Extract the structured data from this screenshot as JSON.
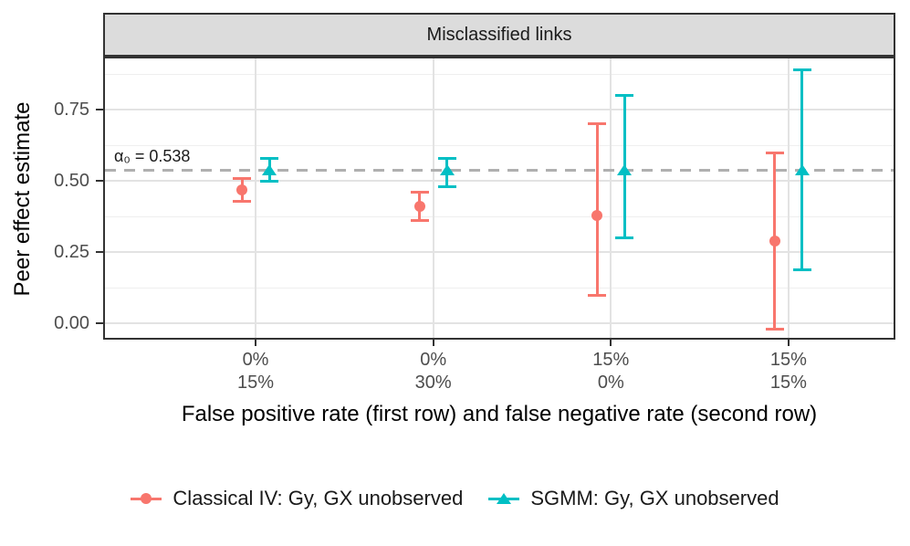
{
  "facet": {
    "title": "Misclassified links"
  },
  "colors": {
    "classical_iv": "#F8766D",
    "sgmm": "#00BFC4",
    "target_line": "#b0b0b0",
    "grid_major": "#e3e3e3",
    "grid_minor": "#efefef",
    "panel_border": "#333333",
    "strip_fill": "#dcdcdc",
    "tick_text": "#4d4d4d"
  },
  "chart_data": {
    "type": "scatter",
    "subtype": "pointrange-errorbar",
    "title": "Misclassified links",
    "xlabel": "False positive rate (first row) and false negative rate (second row)",
    "ylabel": "Peer effect estimate",
    "ylim": [
      -0.05,
      0.93
    ],
    "grid": true,
    "legend_position": "bottom",
    "yticks": [
      {
        "value": 0.0,
        "label": "0.00"
      },
      {
        "value": 0.25,
        "label": "0.25"
      },
      {
        "value": 0.5,
        "label": "0.50"
      },
      {
        "value": 0.75,
        "label": "0.75"
      }
    ],
    "yticks_minor": [
      0.125,
      0.375,
      0.625,
      0.875
    ],
    "categories": [
      {
        "false_positive_rate": "0%",
        "false_negative_rate": "15%"
      },
      {
        "false_positive_rate": "0%",
        "false_negative_rate": "30%"
      },
      {
        "false_positive_rate": "15%",
        "false_negative_rate": "0%"
      },
      {
        "false_positive_rate": "15%",
        "false_negative_rate": "15%"
      }
    ],
    "target_line": {
      "value": 0.538,
      "label": "α₀ = 0.538",
      "style": "dashed"
    },
    "series": [
      {
        "name": "Classical IV: Gy, GX unobserved",
        "marker": "circle",
        "color": "#F8766D",
        "points": [
          {
            "estimate": 0.47,
            "lower": 0.43,
            "upper": 0.51
          },
          {
            "estimate": 0.41,
            "lower": 0.36,
            "upper": 0.46
          },
          {
            "estimate": 0.38,
            "lower": 0.1,
            "upper": 0.7
          },
          {
            "estimate": 0.29,
            "lower": -0.02,
            "upper": 0.6
          }
        ]
      },
      {
        "name": "SGMM: Gy, GX unobserved",
        "marker": "triangle",
        "color": "#00BFC4",
        "points": [
          {
            "estimate": 0.54,
            "lower": 0.5,
            "upper": 0.58
          },
          {
            "estimate": 0.54,
            "lower": 0.48,
            "upper": 0.58
          },
          {
            "estimate": 0.54,
            "lower": 0.3,
            "upper": 0.8
          },
          {
            "estimate": 0.54,
            "lower": 0.19,
            "upper": 0.89
          }
        ]
      }
    ]
  }
}
